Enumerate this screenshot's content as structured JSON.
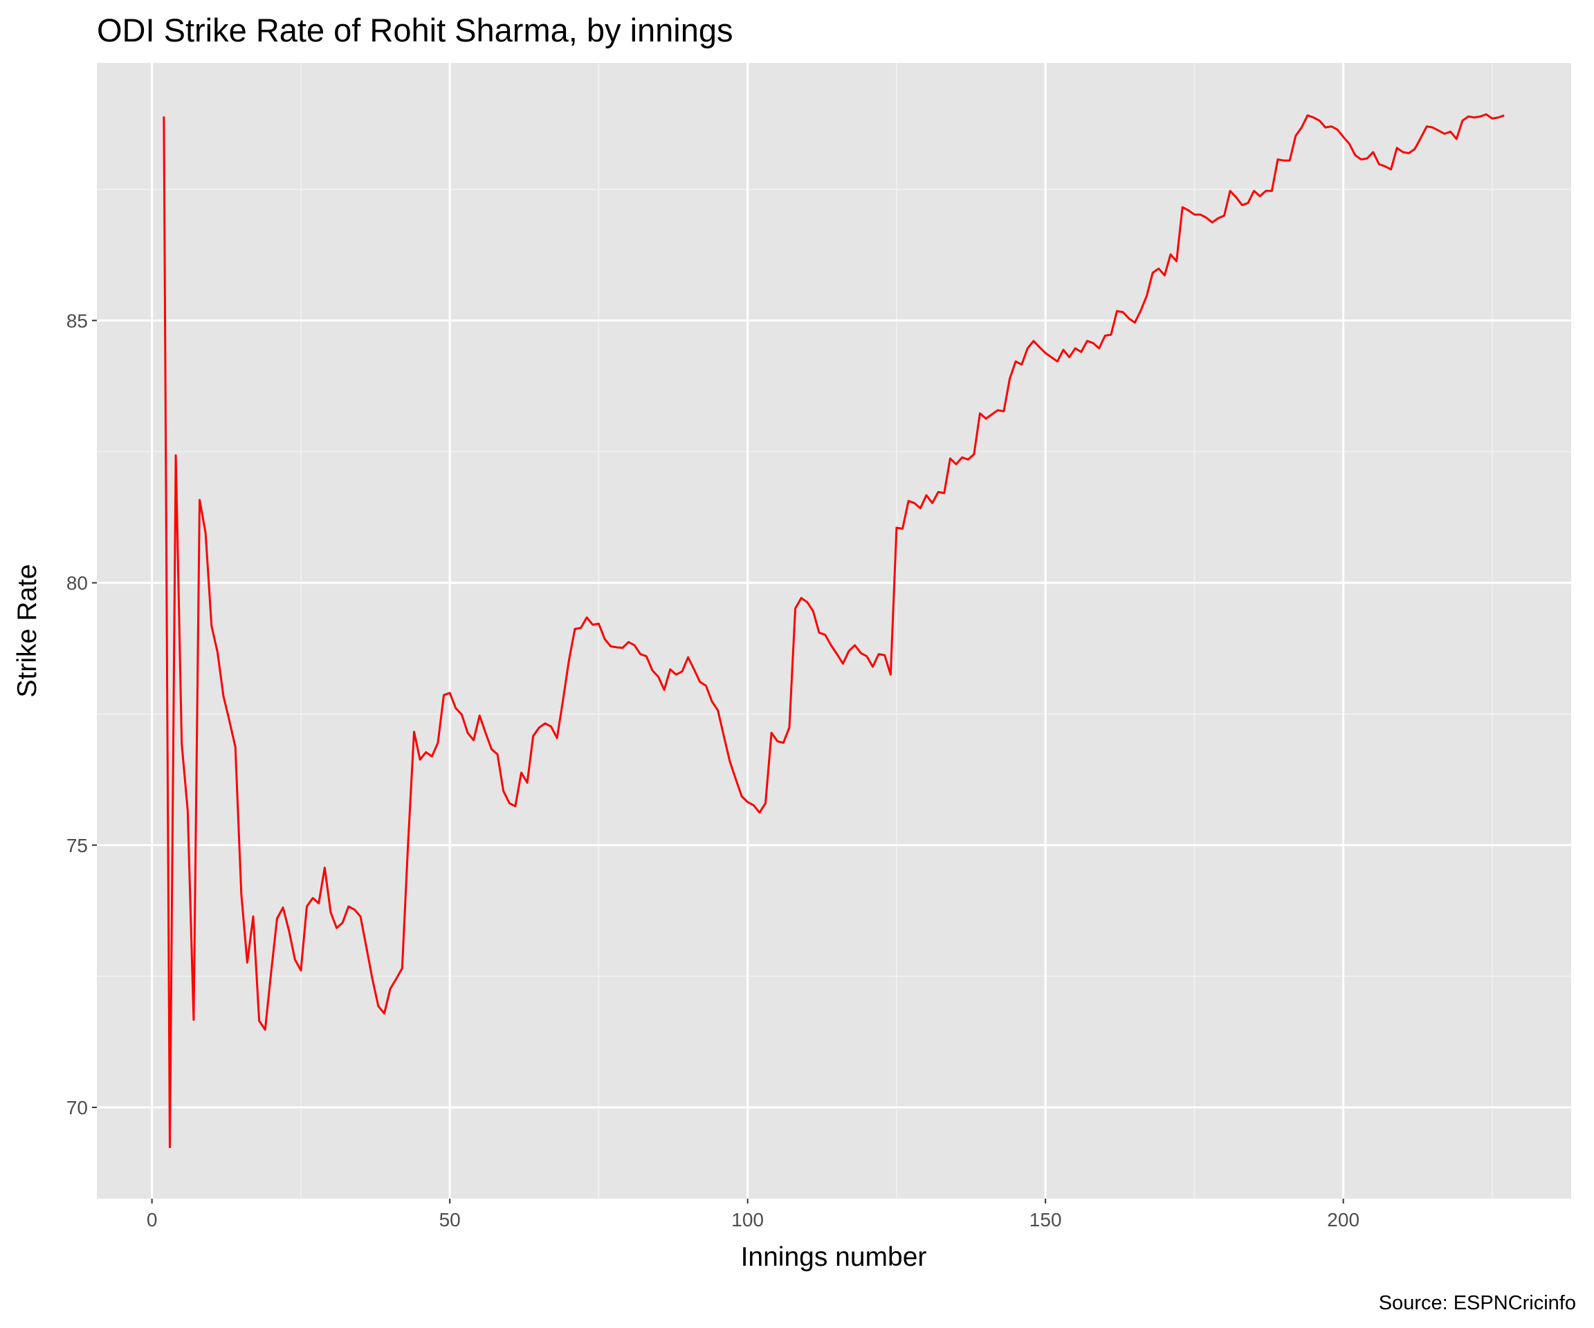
{
  "chart_data": {
    "type": "line",
    "title": "ODI Strike Rate of Rohit Sharma, by innings",
    "x_label": "Innings number",
    "y_label": "Strike Rate",
    "caption": "Source: ESPNCricinfo",
    "color": "#ff0000",
    "x": [
      2,
      3,
      4,
      5,
      6,
      7,
      8,
      9,
      10,
      11,
      12,
      13,
      14,
      15,
      16,
      17,
      18,
      19,
      20,
      21,
      22,
      23,
      24,
      25,
      26,
      27,
      28,
      29,
      30,
      31,
      32,
      33,
      34,
      35,
      36,
      37,
      38,
      39,
      40,
      41,
      42,
      43,
      44,
      45,
      46,
      47,
      48,
      49,
      50,
      51,
      52,
      53,
      54,
      55,
      56,
      57,
      58,
      59,
      60,
      61,
      62,
      63,
      64,
      65,
      66,
      67,
      68,
      69,
      70,
      71,
      72,
      73,
      74,
      75,
      76,
      77,
      78,
      79,
      80,
      81,
      82,
      83,
      84,
      85,
      86,
      87,
      88,
      89,
      90,
      91,
      92,
      93,
      94,
      95,
      96,
      97,
      98,
      99,
      100,
      101,
      102,
      103,
      104,
      105,
      106,
      107,
      108,
      109,
      110,
      111,
      112,
      113,
      114,
      115,
      116,
      117,
      118,
      119,
      120,
      121,
      122,
      123,
      124,
      125,
      126,
      127,
      128,
      129,
      130,
      131,
      132,
      133,
      134,
      135,
      136,
      137,
      138,
      139,
      140,
      141,
      142,
      143,
      144,
      145,
      146,
      147,
      148,
      149,
      150,
      151,
      152,
      153,
      154,
      155,
      156,
      157,
      158,
      159,
      160,
      161,
      162,
      163,
      164,
      165,
      166,
      167,
      168,
      169,
      170,
      171,
      172,
      173,
      174,
      175,
      176,
      177,
      178,
      179,
      180,
      181,
      182,
      183,
      184,
      185,
      186,
      187,
      188,
      189,
      190,
      191,
      192,
      193,
      194,
      195,
      196,
      197,
      198,
      199,
      200,
      201,
      202,
      203,
      204,
      205,
      206,
      207,
      208,
      209,
      210,
      211,
      212,
      213,
      214,
      215,
      216,
      217,
      218,
      219,
      220,
      221,
      222,
      223,
      224,
      225,
      226,
      227
    ],
    "values": [
      88.89,
      69.24,
      82.43,
      76.93,
      75.66,
      71.67,
      81.58,
      80.95,
      79.18,
      78.68,
      77.84,
      77.37,
      76.87,
      74.07,
      72.76,
      73.64,
      71.65,
      71.48,
      72.57,
      73.6,
      73.81,
      73.37,
      72.82,
      72.61,
      73.83,
      73.99,
      73.89,
      74.57,
      73.72,
      73.42,
      73.52,
      73.83,
      73.77,
      73.64,
      73.05,
      72.45,
      71.93,
      71.79,
      72.26,
      72.45,
      72.65,
      75.04,
      77.16,
      76.63,
      76.77,
      76.69,
      76.95,
      77.86,
      77.9,
      77.61,
      77.49,
      77.14,
      77.0,
      77.47,
      77.14,
      76.83,
      76.73,
      76.03,
      75.8,
      75.74,
      76.38,
      76.19,
      77.08,
      77.24,
      77.32,
      77.26,
      77.04,
      77.76,
      78.52,
      79.12,
      79.14,
      79.34,
      79.2,
      79.22,
      78.93,
      78.79,
      78.77,
      78.76,
      78.87,
      78.81,
      78.64,
      78.6,
      78.33,
      78.21,
      77.96,
      78.35,
      78.25,
      78.31,
      78.58,
      78.35,
      78.11,
      78.04,
      77.74,
      77.57,
      77.08,
      76.6,
      76.26,
      75.93,
      75.82,
      75.76,
      75.62,
      75.8,
      77.14,
      76.98,
      76.95,
      77.24,
      79.51,
      79.71,
      79.63,
      79.46,
      79.05,
      79.01,
      78.81,
      78.64,
      78.46,
      78.7,
      78.81,
      78.66,
      78.6,
      78.4,
      78.64,
      78.62,
      78.25,
      81.05,
      81.03,
      81.56,
      81.52,
      81.42,
      81.67,
      81.52,
      81.73,
      81.71,
      82.37,
      82.26,
      82.39,
      82.35,
      82.45,
      83.23,
      83.13,
      83.21,
      83.29,
      83.27,
      83.89,
      84.22,
      84.16,
      84.47,
      84.61,
      84.49,
      84.38,
      84.3,
      84.22,
      84.44,
      84.3,
      84.47,
      84.4,
      84.61,
      84.57,
      84.47,
      84.71,
      84.73,
      85.18,
      85.16,
      85.04,
      84.96,
      85.19,
      85.47,
      85.91,
      85.99,
      85.86,
      86.26,
      86.13,
      87.16,
      87.1,
      87.02,
      87.02,
      86.96,
      86.87,
      86.95,
      87.0,
      87.47,
      87.35,
      87.2,
      87.24,
      87.47,
      87.37,
      87.47,
      87.47,
      88.07,
      88.05,
      88.05,
      88.52,
      88.68,
      88.91,
      88.87,
      88.81,
      88.68,
      88.7,
      88.64,
      88.5,
      88.37,
      88.15,
      88.07,
      88.09,
      88.21,
      87.98,
      87.94,
      87.88,
      88.29,
      88.21,
      88.19,
      88.27,
      88.48,
      88.7,
      88.68,
      88.62,
      88.56,
      88.6,
      88.46,
      88.81,
      88.89,
      88.87,
      88.89,
      88.93,
      88.85,
      88.87,
      88.91
    ],
    "xlim": [
      -9.25,
      238.25
    ],
    "ylim": [
      68.26,
      89.91
    ],
    "xticks": [
      0,
      50,
      100,
      150,
      200
    ],
    "yticks": [
      70,
      75,
      80,
      85
    ],
    "xminor": [
      25,
      75,
      125,
      175,
      225
    ],
    "yminor": [
      72.5,
      77.5,
      82.5,
      87.5
    ],
    "grid": true
  }
}
